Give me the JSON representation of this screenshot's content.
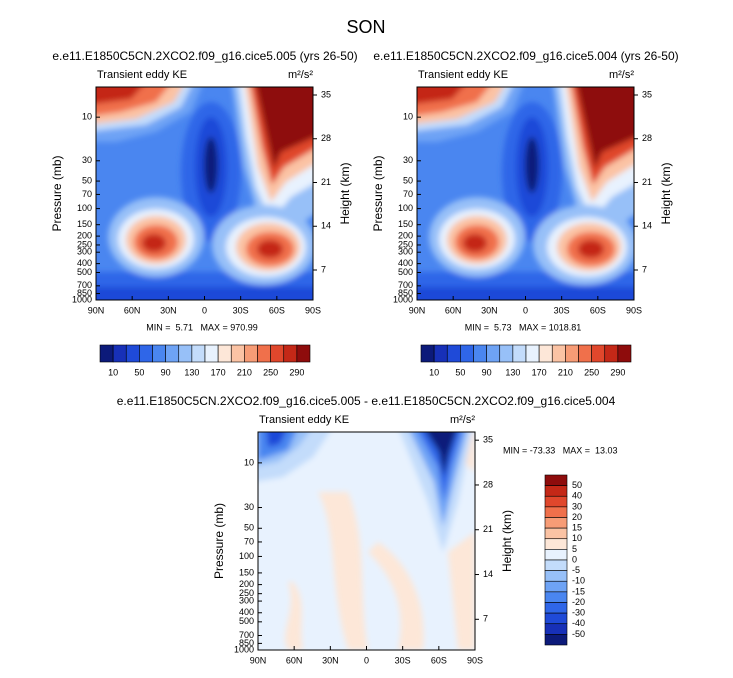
{
  "title": "SON",
  "axes": {
    "pressure_label": "Pressure (mb)",
    "height_label": "Height (km)",
    "pressure_ticks": [
      10,
      30,
      50,
      70,
      100,
      150,
      200,
      250,
      300,
      400,
      500,
      700,
      850,
      1000
    ],
    "height_ticks": [
      7,
      14,
      21,
      28,
      35
    ],
    "lat_ticks": [
      "90N",
      "60N",
      "30N",
      "0",
      "30S",
      "60S",
      "90S"
    ]
  },
  "panels": [
    {
      "title": "e.e11.E1850C5CN.2XCO2.f09_g16.cice5.005 (yrs 26-50)",
      "label": "Transient eddy KE",
      "units": "m²/s²",
      "stats": "MIN =  5.71   MAX = 970.99"
    },
    {
      "title": "e.e11.E1850C5CN.2XCO2.f09_g16.cice5.004 (yrs 26-50)",
      "label": "Transient eddy KE",
      "units": "m²/s²",
      "stats": "MIN =  5.73   MAX = 1018.81"
    },
    {
      "title": "e.e11.E1850C5CN.2XCO2.f09_g16.cice5.005 - e.e11.E1850C5CN.2XCO2.f09_g16.cice5.004",
      "label": "Transient eddy KE",
      "units": "m²/s²",
      "stats": "MIN = -73.33   MAX =  13.03"
    }
  ],
  "colorbar_labels": [
    10,
    50,
    90,
    130,
    170,
    210,
    250,
    290
  ],
  "diff_colorbar_labels": [
    50,
    40,
    30,
    20,
    15,
    10,
    5,
    0,
    -5,
    -10,
    -15,
    -20,
    -30,
    -40,
    -50
  ]
}
